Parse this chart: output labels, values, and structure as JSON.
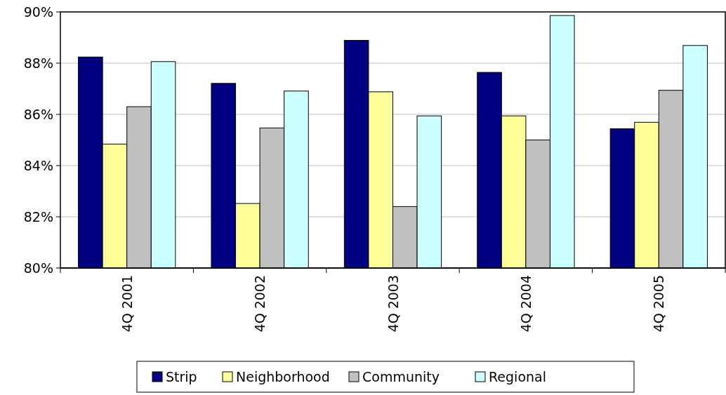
{
  "chart_data": {
    "type": "bar",
    "categories": [
      "4Q 2001",
      "4Q 2002",
      "4Q 2003",
      "4Q 2004",
      "4Q 2005"
    ],
    "series": [
      {
        "name": "Strip",
        "color": "#000080",
        "values": [
          88.24,
          87.21,
          88.89,
          87.64,
          85.44
        ]
      },
      {
        "name": "Neighborhood",
        "color": "#ffff99",
        "values": [
          84.84,
          82.52,
          86.88,
          85.94,
          85.69
        ]
      },
      {
        "name": "Community",
        "color": "#c0c0c0",
        "values": [
          86.3,
          85.47,
          82.4,
          85.0,
          86.94
        ]
      },
      {
        "name": "Regional",
        "color": "#ccffff",
        "values": [
          88.06,
          86.91,
          85.94,
          89.86,
          88.69
        ]
      }
    ],
    "ylim": [
      80,
      90
    ],
    "yticks": [
      {
        "value": 80,
        "label": "80%"
      },
      {
        "value": 82,
        "label": "82%"
      },
      {
        "value": 84,
        "label": "84%"
      },
      {
        "value": 86,
        "label": "86%"
      },
      {
        "value": 88,
        "label": "88%"
      },
      {
        "value": 90,
        "label": "90%"
      }
    ],
    "grid": "y",
    "legend": "bottom"
  }
}
